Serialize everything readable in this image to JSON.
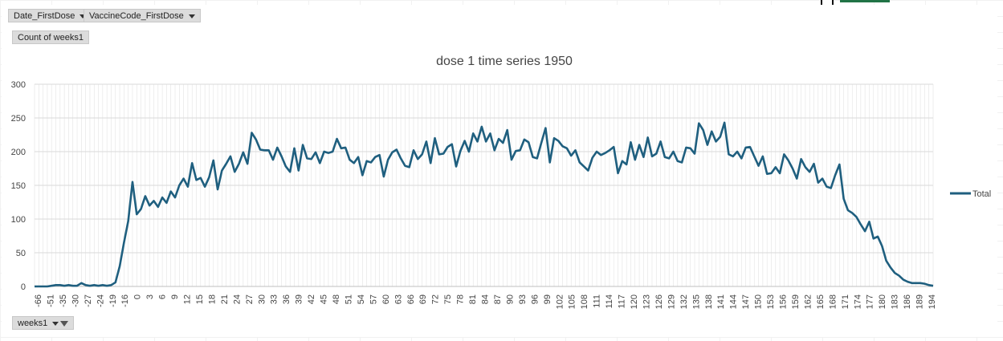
{
  "pivot": {
    "filter_fields": [
      {
        "label": "Date_FirstDose"
      },
      {
        "label": "VaccineCode_FirstDose"
      }
    ],
    "value_field": "Count of weeks1",
    "axis_field": "weeks1"
  },
  "colors": {
    "series": "#1f5f7f",
    "grid": "#e3e3e3",
    "button": "#dcdcdc"
  },
  "chart_data": {
    "type": "line",
    "title": "dose 1 time series 1950",
    "xlabel": "",
    "ylabel": "",
    "ylim": [
      0,
      300
    ],
    "yticks": [
      0,
      50,
      100,
      150,
      200,
      250,
      300
    ],
    "grid": true,
    "legend": "right",
    "xtick_labels": [
      "-66",
      "-51",
      "-35",
      "-30",
      "-27",
      "-24",
      "-19",
      "-16",
      "0",
      "3",
      "6",
      "9",
      "12",
      "15",
      "18",
      "21",
      "24",
      "27",
      "30",
      "33",
      "36",
      "39",
      "42",
      "45",
      "48",
      "51",
      "54",
      "57",
      "60",
      "63",
      "66",
      "69",
      "72",
      "75",
      "78",
      "81",
      "84",
      "87",
      "90",
      "93",
      "96",
      "99",
      "102",
      "105",
      "108",
      "111",
      "114",
      "117",
      "120",
      "123",
      "126",
      "129",
      "132",
      "135",
      "138",
      "141",
      "144",
      "147",
      "150",
      "153",
      "156",
      "159",
      "162",
      "165",
      "168",
      "171",
      "174",
      "177",
      "180",
      "183",
      "186",
      "189",
      "194"
    ],
    "series": [
      {
        "name": "Total",
        "values": [
          0,
          0,
          0,
          0,
          1,
          2,
          2,
          1,
          2,
          1,
          1,
          5,
          2,
          1,
          2,
          1,
          2,
          1,
          2,
          6,
          30,
          65,
          97,
          155,
          107,
          115,
          134,
          120,
          127,
          118,
          132,
          124,
          141,
          132,
          150,
          160,
          148,
          183,
          158,
          161,
          148,
          162,
          187,
          144,
          172,
          182,
          193,
          170,
          182,
          199,
          182,
          228,
          218,
          203,
          202,
          202,
          188,
          206,
          193,
          178,
          170,
          205,
          172,
          210,
          190,
          189,
          199,
          183,
          200,
          198,
          200,
          219,
          205,
          206,
          188,
          183,
          192,
          165,
          186,
          184,
          192,
          195,
          163,
          188,
          199,
          203,
          190,
          179,
          177,
          202,
          189,
          196,
          215,
          183,
          220,
          196,
          197,
          207,
          211,
          178,
          201,
          216,
          200,
          227,
          215,
          237,
          215,
          227,
          202,
          219,
          213,
          232,
          188,
          201,
          202,
          218,
          214,
          192,
          190,
          213,
          235,
          184,
          220,
          216,
          208,
          205,
          194,
          202,
          184,
          178,
          172,
          191,
          200,
          195,
          198,
          202,
          207,
          168,
          186,
          181,
          214,
          188,
          210,
          192,
          221,
          193,
          197,
          215,
          192,
          190,
          200,
          186,
          184,
          206,
          205,
          197,
          242,
          232,
          210,
          230,
          215,
          222,
          243,
          196,
          193,
          200,
          190,
          206,
          207,
          193,
          179,
          193,
          167,
          168,
          177,
          168,
          196,
          187,
          175,
          160,
          189,
          177,
          170,
          182,
          154,
          160,
          148,
          146,
          165,
          181,
          130,
          113,
          109,
          103,
          92,
          82,
          96,
          71,
          74,
          60,
          38,
          28,
          20,
          16,
          10,
          7,
          5,
          5,
          5,
          4,
          2,
          1
        ]
      }
    ]
  }
}
